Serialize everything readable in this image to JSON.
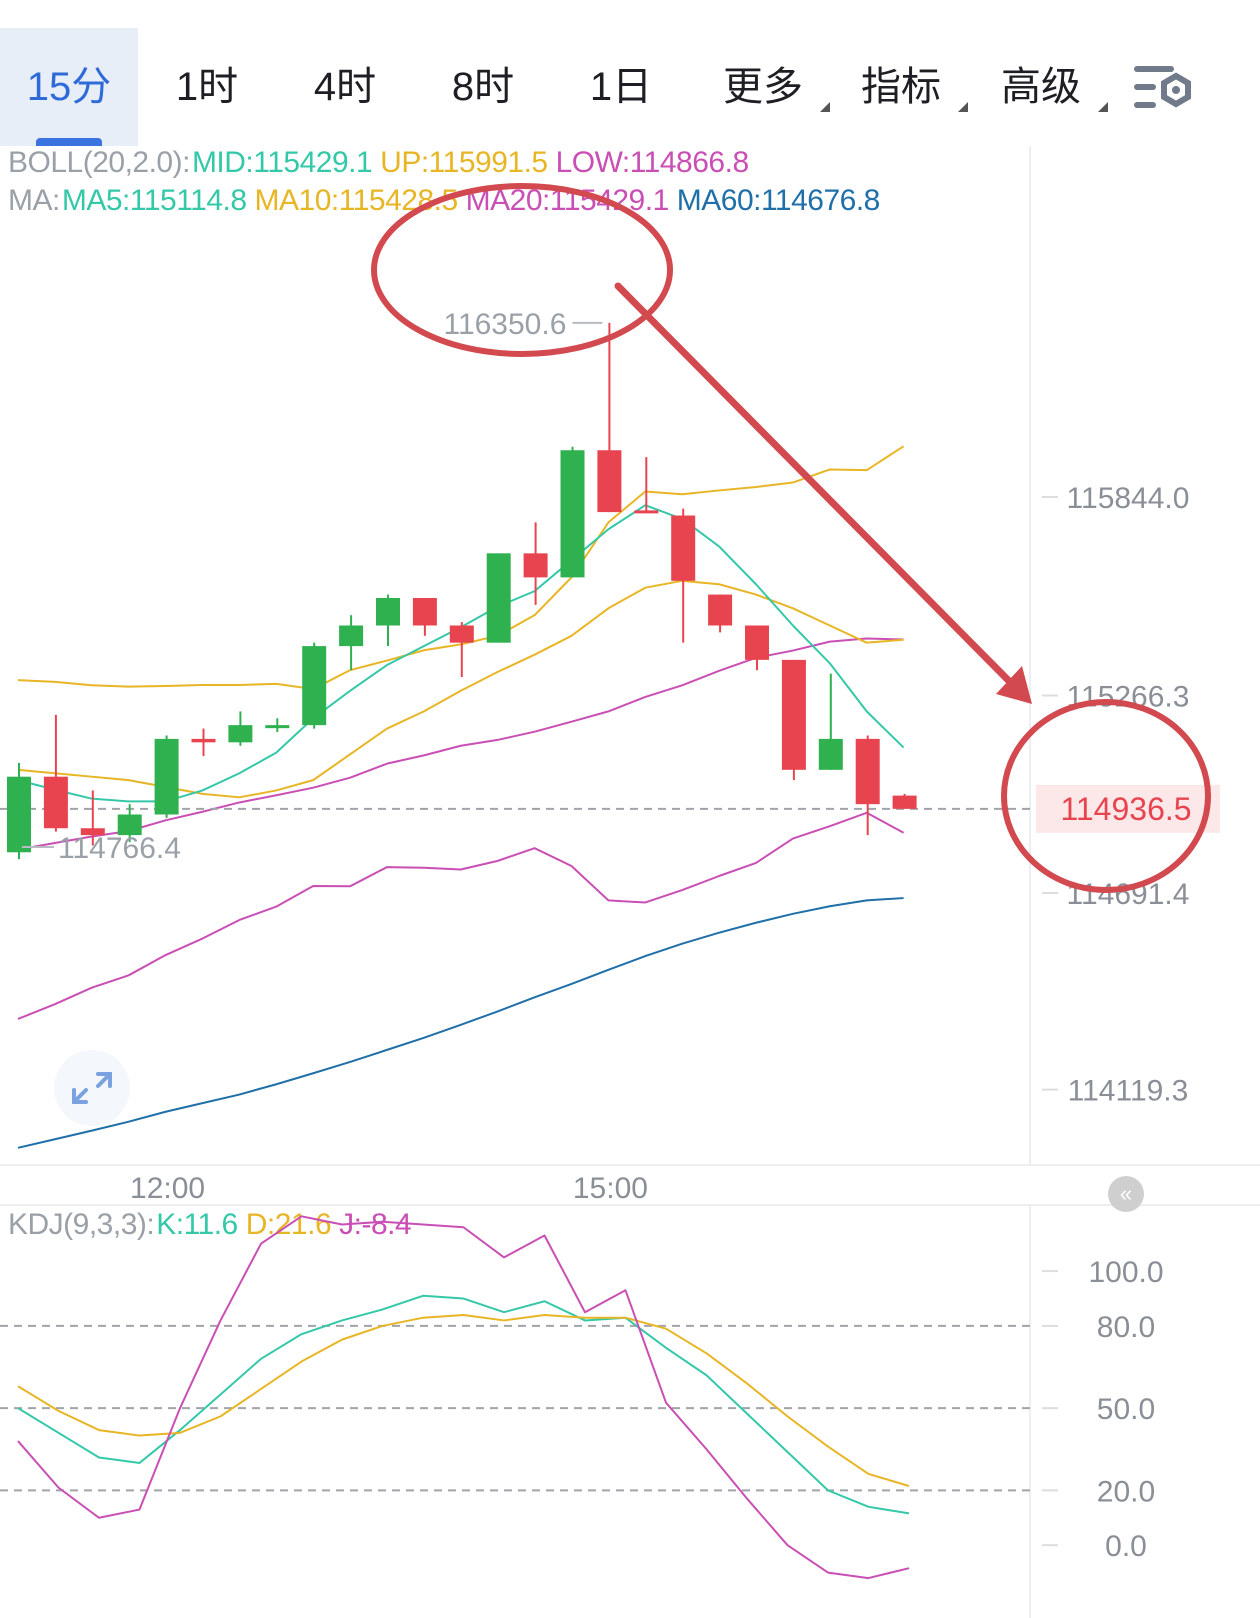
{
  "tabs": [
    {
      "label": "15分",
      "active": true
    },
    {
      "label": "1时"
    },
    {
      "label": "4时"
    },
    {
      "label": "8时"
    },
    {
      "label": "1日"
    },
    {
      "label": "更多",
      "dropdown": true
    },
    {
      "label": "指标",
      "dropdown": true
    },
    {
      "label": "高级",
      "dropdown": true
    }
  ],
  "settings_icon": "chart-settings-icon",
  "boll_legend": {
    "name": "BOLL(20,2.0):",
    "mid": "MID:115429.1",
    "up": "UP:115991.5",
    "low": "LOW:114866.8"
  },
  "ma_legend": {
    "name": "MA:",
    "ma5": "MA5:115114.8",
    "ma10": "MA10:115428.5",
    "ma20": "MA20:115429.1",
    "ma60": "MA60:114676.8"
  },
  "kdj_legend": {
    "name": "KDJ(9,3,3):",
    "k": "K:11.6",
    "d": "D:21.6",
    "j": "J:-8.4"
  },
  "colors": {
    "up": "#2eb14e",
    "down": "#e8444f",
    "mid": "#c94fb4",
    "upper": "#e8b525",
    "lower": "#c94fb4",
    "ma5": "#35c8a8",
    "ma10": "#e8b525",
    "ma20": "#c94fb4",
    "ma60": "#1f6fa8",
    "annotation": "#d24a4f",
    "last_price_bg": "#fde8e9",
    "last_price_text": "#e8444f"
  },
  "chart_data": [
    {
      "type": "candlestick",
      "ylim": [
        113900,
        116650
      ],
      "y_ticks": [
        "115844.0",
        "115266.3",
        "114691.4",
        "114119.3"
      ],
      "y_tick_values": [
        115844.0,
        115266.3,
        114691.4,
        114119.3
      ],
      "x_labels": [
        "12:00",
        "15:00"
      ],
      "x_label_index": [
        4,
        16
      ],
      "high_label": "116350.6",
      "low_label": "114766.4",
      "last_price": "114936.5",
      "last_price_value": 114936.5,
      "candles": [
        {
          "o": 114810,
          "h": 115070,
          "l": 114790,
          "c": 115030
        },
        {
          "o": 115030,
          "h": 115210,
          "l": 114870,
          "c": 114880
        },
        {
          "o": 114880,
          "h": 114990,
          "l": 114830,
          "c": 114860
        },
        {
          "o": 114860,
          "h": 114950,
          "l": 114840,
          "c": 114920
        },
        {
          "o": 114920,
          "h": 115150,
          "l": 114910,
          "c": 115140
        },
        {
          "o": 115140,
          "h": 115170,
          "l": 115090,
          "c": 115130
        },
        {
          "o": 115130,
          "h": 115220,
          "l": 115120,
          "c": 115180
        },
        {
          "o": 115180,
          "h": 115200,
          "l": 115160,
          "c": 115180
        },
        {
          "o": 115180,
          "h": 115420,
          "l": 115170,
          "c": 115410
        },
        {
          "o": 115410,
          "h": 115500,
          "l": 115340,
          "c": 115470
        },
        {
          "o": 115470,
          "h": 115560,
          "l": 115410,
          "c": 115550
        },
        {
          "o": 115550,
          "h": 115550,
          "l": 115440,
          "c": 115470
        },
        {
          "o": 115470,
          "h": 115480,
          "l": 115320,
          "c": 115420
        },
        {
          "o": 115420,
          "h": 115680,
          "l": 115420,
          "c": 115680
        },
        {
          "o": 115680,
          "h": 115770,
          "l": 115530,
          "c": 115610
        },
        {
          "o": 115610,
          "h": 115990,
          "l": 115610,
          "c": 115980
        },
        {
          "o": 115980,
          "h": 116350.6,
          "l": 115800,
          "c": 115800
        },
        {
          "o": 115805,
          "h": 115960,
          "l": 115800,
          "c": 115800
        },
        {
          "o": 115790,
          "h": 115810,
          "l": 115420,
          "c": 115600
        },
        {
          "o": 115560,
          "h": 115560,
          "l": 115450,
          "c": 115470
        },
        {
          "o": 115470,
          "h": 115470,
          "l": 115340,
          "c": 115370
        },
        {
          "o": 115370,
          "h": 115370,
          "l": 115020,
          "c": 115050
        },
        {
          "o": 115050,
          "h": 115330,
          "l": 115050,
          "c": 115140
        },
        {
          "o": 115140,
          "h": 115150,
          "l": 114860,
          "c": 114950
        },
        {
          "o": 114975,
          "h": 114980,
          "l": 114936.5,
          "c": 114936.5
        }
      ],
      "series": [
        {
          "name": "MID",
          "values": [
            114818,
            114837,
            114856,
            114872,
            114903,
            114928,
            114955,
            114976,
            114998,
            115027,
            115068,
            115092,
            115120,
            115137,
            115161,
            115190,
            115220,
            115262,
            115296,
            115338,
            115376,
            115397,
            115423,
            115432,
            115429.1
          ]
        },
        {
          "name": "UP",
          "values": [
            115311,
            115306,
            115296,
            115292,
            115294,
            115297,
            115297,
            115300,
            115285,
            115340,
            115368,
            115398,
            115415,
            115440,
            115500,
            115610,
            115770,
            115860,
            115852,
            115863,
            115873,
            115886,
            115924,
            115922,
            115991.5
          ]
        },
        {
          "name": "LOW",
          "values": [
            114325,
            114368,
            114416,
            114452,
            114511,
            114559,
            114613,
            114652,
            114712,
            114711,
            114767,
            114765,
            114760,
            114785,
            114822,
            114770,
            114670,
            114664,
            114700,
            114741,
            114779,
            114850,
            114886,
            114925,
            114866.8
          ]
        },
        {
          "name": "MA5",
          "values": [
            115020,
            114992,
            114966,
            114958,
            114958,
            114990,
            115040,
            115100,
            115200,
            115280,
            115355,
            115410,
            115465,
            115525,
            115570,
            115660,
            115750,
            115820,
            115780,
            115700,
            115590,
            115470,
            115360,
            115220,
            115114.8
          ]
        },
        {
          "name": "MA10",
          "values": [
            115050,
            115040,
            115030,
            115020,
            115000,
            114980,
            114970,
            114990,
            115020,
            115095,
            115170,
            115220,
            115280,
            115335,
            115385,
            115440,
            115520,
            115580,
            115600,
            115590,
            115560,
            115520,
            115470,
            115420,
            115428.5
          ]
        },
        {
          "name": "MA60",
          "values": [
            113950,
            113975,
            114000,
            114026,
            114055,
            114080,
            114105,
            114135,
            114167,
            114200,
            114235,
            114270,
            114308,
            114347,
            114388,
            114427,
            114468,
            114508,
            114544,
            114576,
            114605,
            114631,
            114653,
            114670,
            114676.8
          ]
        }
      ]
    },
    {
      "type": "line",
      "title": "KDJ(9,3,3)",
      "ylim": [
        -20,
        115
      ],
      "y_ticks": [
        "100.0",
        "80.0",
        "50.0",
        "20.0",
        "0.0"
      ],
      "y_tick_values": [
        100,
        80,
        50,
        20,
        0
      ],
      "dashed_levels": [
        80,
        50,
        20
      ],
      "series": [
        {
          "name": "K",
          "values": [
            50,
            41,
            32,
            30,
            42,
            55,
            68,
            77,
            82,
            86,
            91,
            90,
            85,
            89,
            82,
            83,
            72,
            62,
            48,
            34,
            20,
            14,
            11.6
          ]
        },
        {
          "name": "D",
          "values": [
            58,
            49,
            42,
            40,
            41,
            47,
            57,
            67,
            75,
            80,
            83,
            84,
            82,
            84,
            83,
            83,
            79,
            70,
            59,
            47,
            36,
            26,
            21.6
          ]
        },
        {
          "name": "J",
          "values": [
            38,
            21,
            10,
            13,
            50,
            82,
            110,
            120,
            117,
            118,
            117,
            116,
            105,
            113,
            85,
            93,
            52,
            35,
            17,
            0,
            -10,
            -12,
            -8.4
          ]
        }
      ]
    }
  ]
}
